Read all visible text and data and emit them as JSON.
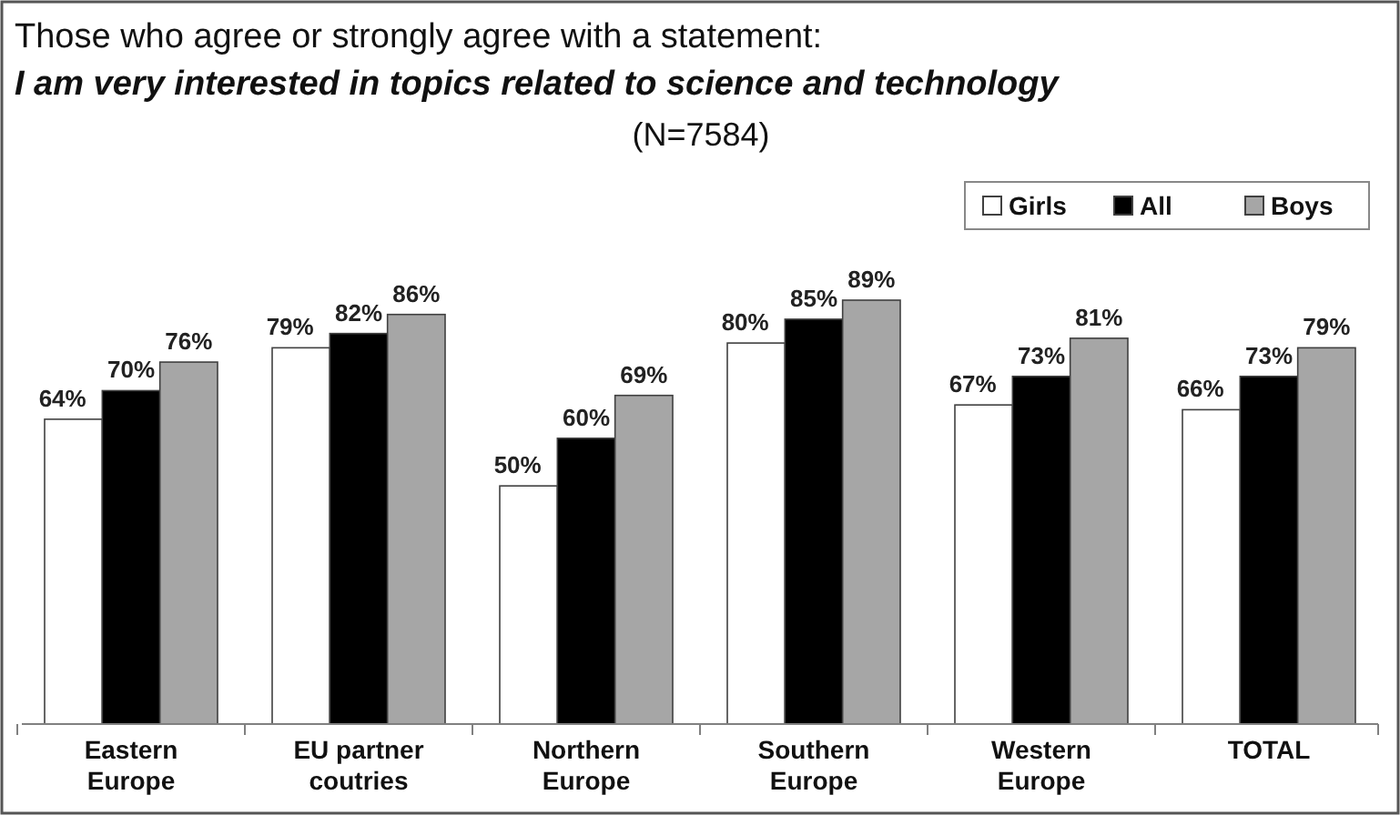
{
  "chart_data": {
    "type": "bar",
    "title": "Those who agree or strongly agree with a statement:",
    "subtitle": "I am very interested in  topics related to science and technology",
    "annotations": [
      "(N=7584)"
    ],
    "categories": [
      "Eastern Europe",
      "EU partner coutries",
      "Northern Europe",
      "Southern Europe",
      "Western Europe",
      "TOTAL"
    ],
    "series": [
      {
        "name": "Girls",
        "color": "#ffffff",
        "values": [
          64,
          79,
          50,
          80,
          67,
          66
        ],
        "value_labels": [
          "64%",
          "79%",
          "50%",
          "80%",
          "67%",
          "66%"
        ]
      },
      {
        "name": "All",
        "color": "#000000",
        "values": [
          70,
          82,
          60,
          85,
          73,
          73
        ],
        "value_labels": [
          "70%",
          "82%",
          "60%",
          "85%",
          "73%",
          "73%"
        ]
      },
      {
        "name": "Boys",
        "color": "#a6a6a6",
        "values": [
          76,
          86,
          69,
          89,
          81,
          79
        ],
        "value_labels": [
          "76%",
          "86%",
          "69%",
          "89%",
          "81%",
          "79%"
        ]
      }
    ],
    "legend": "top right",
    "grid": false,
    "tick_labels": "x"
  }
}
